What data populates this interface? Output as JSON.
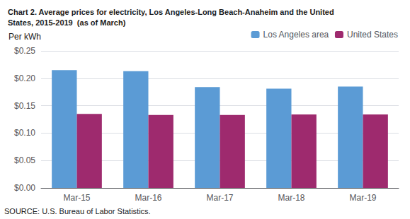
{
  "chart_data": {
    "type": "bar",
    "title": "Chart 2. Average prices for electricity, Los Angeles-Long Beach-Anaheim and the United\nStates, 2015-2019  (as of March)",
    "ylabel": "Per kWh",
    "annotations": [
      "SOURCE: U.S. Bureau of Labor Statistics."
    ],
    "categories": [
      "Mar-15",
      "Mar-16",
      "Mar-17",
      "Mar-18",
      "Mar-19"
    ],
    "series": [
      {
        "name": "Los Angeles area",
        "color": "#5B9BD5",
        "values": [
          0.215,
          0.213,
          0.184,
          0.181,
          0.185
        ]
      },
      {
        "name": "United States",
        "color": "#9E2A6E",
        "values": [
          0.135,
          0.133,
          0.133,
          0.134,
          0.134
        ]
      }
    ],
    "ylim": [
      0,
      0.25
    ],
    "yticks": [
      {
        "value": 0.0,
        "label": "$0.00"
      },
      {
        "value": 0.05,
        "label": "$0.05"
      },
      {
        "value": 0.1,
        "label": "$0.10"
      },
      {
        "value": 0.15,
        "label": "$0.15"
      },
      {
        "value": 0.2,
        "label": "$0.20"
      },
      {
        "value": 0.25,
        "label": "$0.25"
      }
    ],
    "grid": true,
    "legend": "upper right"
  }
}
